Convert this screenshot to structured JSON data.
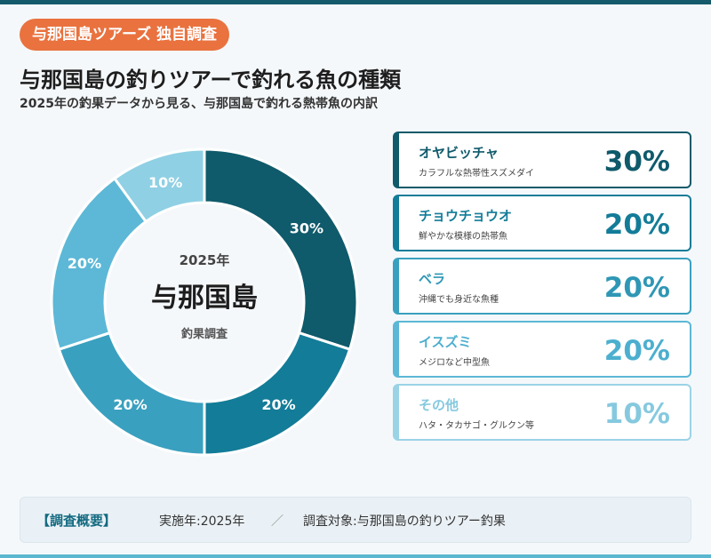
{
  "badge": "与那国島ツアーズ 独自調査",
  "title": "与那国島の釣りツアーで釣れる魚の種類",
  "subtitle": "2025年の釣果データから見る、与那国島で釣れる熱帯魚の内訳",
  "center": {
    "year": "2025年",
    "place": "与那国島",
    "caption": "釣果調査"
  },
  "chart_data": {
    "type": "pie",
    "donut": true,
    "title": "与那国島の釣りツアーで釣れる魚の種類",
    "categories": [
      "オヤビッチャ",
      "チョウチョウオ",
      "ベラ",
      "イスズミ",
      "その他"
    ],
    "values": [
      30,
      20,
      20,
      20,
      10
    ],
    "labels": [
      "30%",
      "20%",
      "20%",
      "20%",
      "10%"
    ],
    "colors": [
      "#0f5a6b",
      "#137c98",
      "#3aa0bf",
      "#5cb8d6",
      "#8fd0e4"
    ]
  },
  "legend": [
    {
      "name": "オヤビッチャ",
      "desc": "カラフルな熱帯性スズメダイ",
      "pct": "30%",
      "color": "#0f5a6b",
      "border": "#0f5a6b"
    },
    {
      "name": "チョウチョウオ",
      "desc": "鮮やかな模様の熱帯魚",
      "pct": "20%",
      "color": "#137c98",
      "border": "#137c98"
    },
    {
      "name": "ベラ",
      "desc": "沖縄でも身近な魚種",
      "pct": "20%",
      "color": "#2f97b5",
      "border": "#3aa0bf"
    },
    {
      "name": "イスズミ",
      "desc": "メジロなど中型魚",
      "pct": "20%",
      "color": "#4cafcf",
      "border": "#5cb8d6"
    },
    {
      "name": "その他",
      "desc": "ハタ・タカサゴ・グルクン等",
      "pct": "10%",
      "color": "#86c9df",
      "border": "#9bd3e6"
    }
  ],
  "footer": {
    "label": "【調査概要】",
    "item1": "実施年:2025年",
    "separator": "／",
    "item2": "調査対象:与那国島の釣りツアー釣果"
  }
}
